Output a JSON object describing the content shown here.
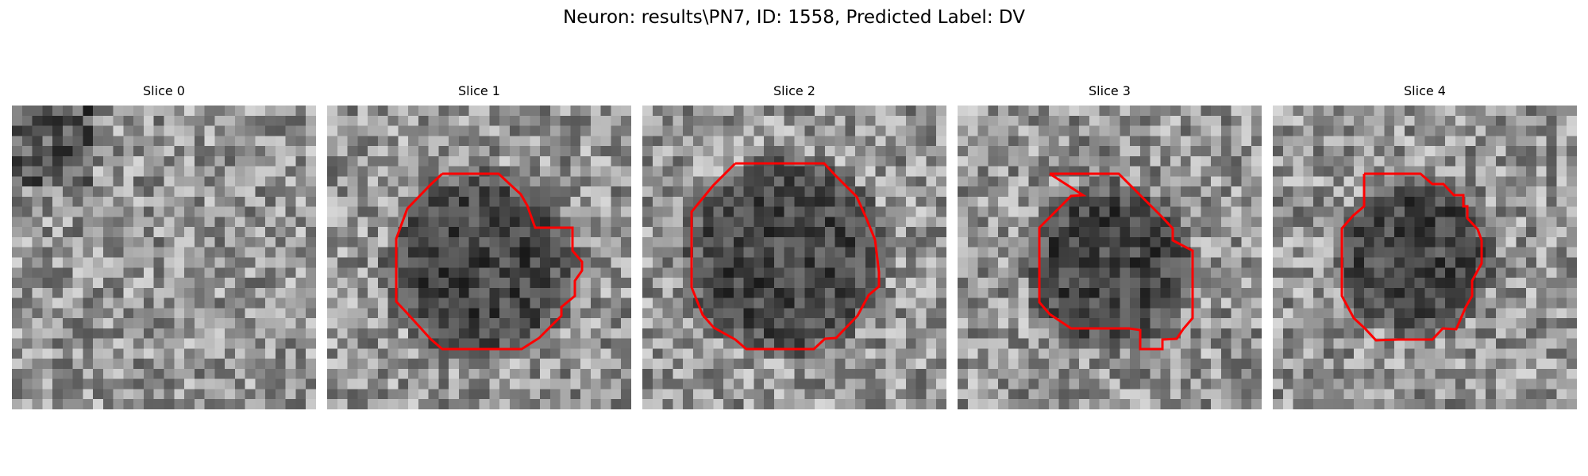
{
  "figure": {
    "title": "Neuron: results\\PN7, ID: 1558, Predicted Label: DV",
    "contour_color": "#ff0000"
  },
  "slices": [
    {
      "label": "Slice 0",
      "has_contour": false,
      "dark_blob": false
    },
    {
      "label": "Slice 1",
      "has_contour": true,
      "dark_blob": true
    },
    {
      "label": "Slice 2",
      "has_contour": true,
      "dark_blob": true
    },
    {
      "label": "Slice 3",
      "has_contour": true,
      "dark_blob": true
    },
    {
      "label": "Slice 4",
      "has_contour": true,
      "dark_blob": true
    }
  ]
}
